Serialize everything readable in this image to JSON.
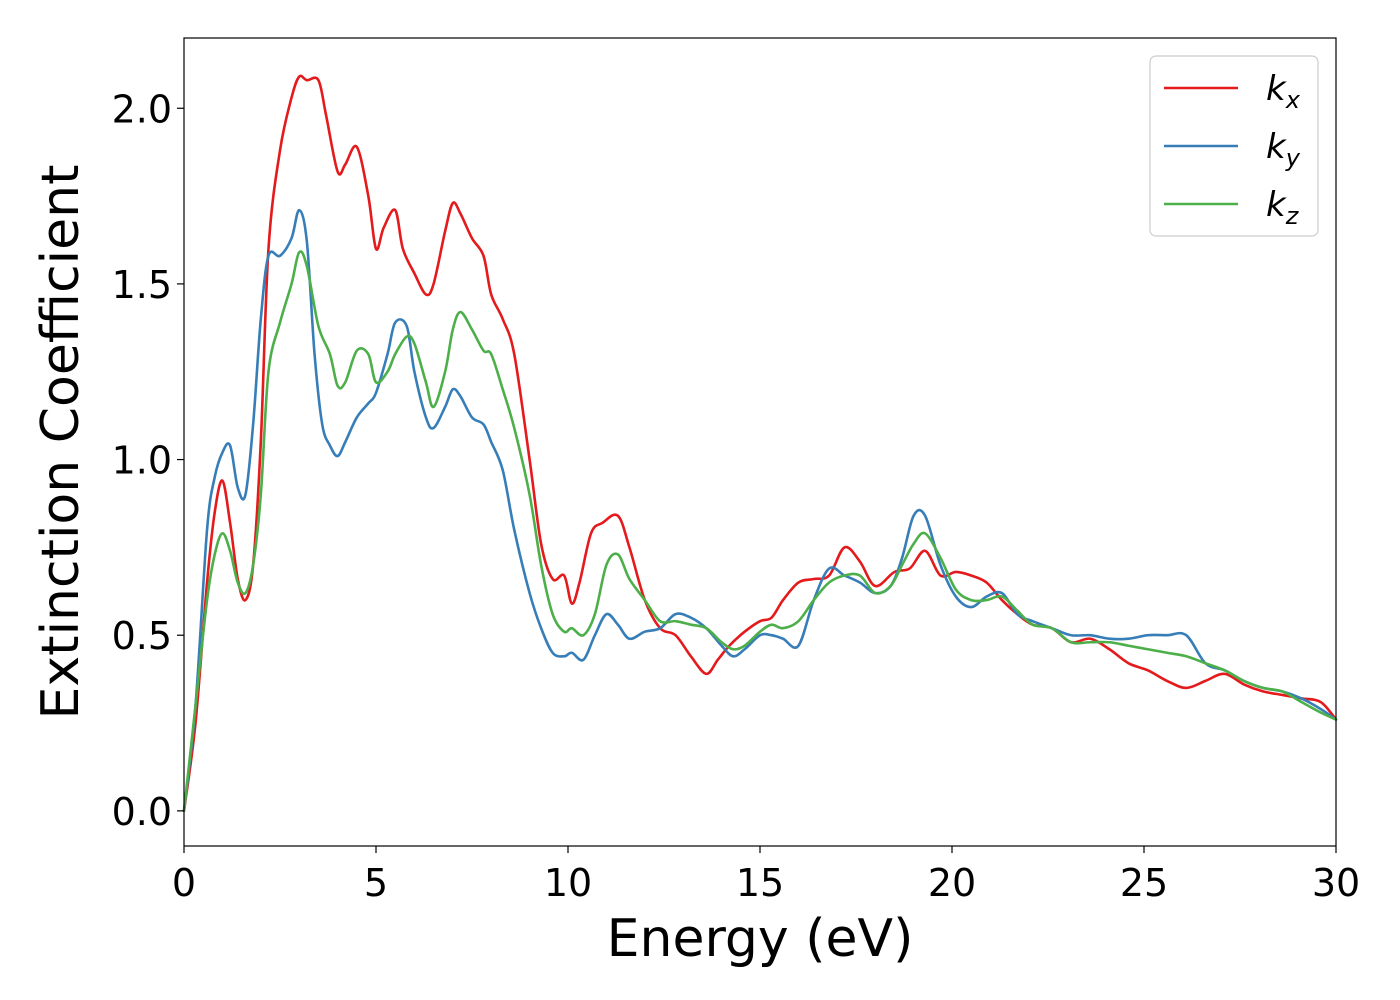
{
  "chart_data": {
    "type": "line",
    "xlabel": "Energy (eV)",
    "ylabel": "Extinction Coefficient",
    "xlim": [
      0,
      30
    ],
    "ylim": [
      -0.1,
      2.2
    ],
    "xticks": [
      0,
      5,
      10,
      15,
      20,
      25,
      30
    ],
    "xtick_labels": [
      "0",
      "5",
      "10",
      "15",
      "20",
      "25",
      "30"
    ],
    "yticks": [
      0.0,
      0.5,
      1.0,
      1.5,
      2.0
    ],
    "ytick_labels": [
      "0.0",
      "0.5",
      "1.0",
      "1.5",
      "2.0"
    ],
    "grid": false,
    "legend": "top-right",
    "series": [
      {
        "name": "k",
        "subscript": "x",
        "color": "#e41a1c",
        "x": [
          0,
          0.3,
          0.6,
          0.8,
          1.0,
          1.2,
          1.4,
          1.6,
          1.8,
          2.0,
          2.2,
          2.5,
          2.8,
          3.0,
          3.2,
          3.5,
          3.7,
          4.0,
          4.2,
          4.5,
          4.8,
          5.0,
          5.2,
          5.5,
          5.7,
          6.0,
          6.3,
          6.5,
          6.8,
          7.0,
          7.2,
          7.5,
          7.8,
          8.0,
          8.3,
          8.6,
          9.0,
          9.3,
          9.6,
          9.9,
          10.1,
          10.3,
          10.6,
          10.9,
          11.3,
          11.6,
          12.0,
          12.4,
          12.8,
          13.2,
          13.6,
          13.9,
          14.2,
          14.6,
          15.0,
          15.3,
          15.6,
          16.0,
          16.4,
          16.8,
          17.2,
          17.6,
          18.0,
          18.5,
          18.9,
          19.3,
          19.7,
          20.1,
          20.5,
          20.9,
          21.3,
          21.7,
          22.1,
          22.6,
          23.1,
          23.6,
          24.1,
          24.6,
          25.1,
          25.6,
          26.1,
          26.6,
          27.1,
          27.6,
          28.1,
          28.6,
          29.1,
          29.6,
          30.0
        ],
        "values": [
          0.0,
          0.25,
          0.65,
          0.85,
          0.94,
          0.82,
          0.66,
          0.6,
          0.7,
          1.05,
          1.6,
          1.88,
          2.03,
          2.09,
          2.08,
          2.08,
          1.98,
          1.82,
          1.84,
          1.89,
          1.75,
          1.6,
          1.66,
          1.71,
          1.6,
          1.53,
          1.47,
          1.5,
          1.65,
          1.73,
          1.7,
          1.63,
          1.58,
          1.47,
          1.4,
          1.3,
          1.0,
          0.76,
          0.66,
          0.67,
          0.59,
          0.65,
          0.79,
          0.82,
          0.84,
          0.75,
          0.6,
          0.52,
          0.5,
          0.44,
          0.39,
          0.43,
          0.47,
          0.51,
          0.54,
          0.55,
          0.6,
          0.65,
          0.66,
          0.67,
          0.75,
          0.71,
          0.64,
          0.68,
          0.69,
          0.74,
          0.67,
          0.68,
          0.67,
          0.65,
          0.6,
          0.56,
          0.53,
          0.52,
          0.48,
          0.49,
          0.46,
          0.42,
          0.4,
          0.37,
          0.35,
          0.37,
          0.39,
          0.36,
          0.34,
          0.33,
          0.32,
          0.31,
          0.26
        ]
      },
      {
        "name": "k",
        "subscript": "y",
        "color": "#377eb8",
        "x": [
          0,
          0.3,
          0.6,
          0.8,
          1.0,
          1.2,
          1.4,
          1.6,
          1.8,
          2.0,
          2.2,
          2.5,
          2.8,
          3.0,
          3.2,
          3.4,
          3.6,
          3.8,
          4.0,
          4.2,
          4.5,
          4.8,
          5.0,
          5.3,
          5.5,
          5.8,
          6.0,
          6.3,
          6.5,
          6.8,
          7.0,
          7.2,
          7.5,
          7.8,
          8.0,
          8.3,
          8.6,
          9.0,
          9.3,
          9.6,
          9.9,
          10.1,
          10.4,
          10.7,
          11.0,
          11.3,
          11.6,
          12.0,
          12.4,
          12.8,
          13.2,
          13.6,
          14.0,
          14.3,
          14.6,
          15.0,
          15.3,
          15.6,
          16.0,
          16.4,
          16.8,
          17.2,
          17.6,
          18.0,
          18.4,
          18.7,
          19.0,
          19.3,
          19.7,
          20.1,
          20.5,
          20.9,
          21.3,
          21.7,
          22.1,
          22.6,
          23.1,
          23.6,
          24.1,
          24.6,
          25.1,
          25.6,
          26.1,
          26.6,
          27.1,
          27.6,
          28.1,
          28.6,
          29.1,
          29.6,
          30.0
        ],
        "values": [
          0.0,
          0.3,
          0.8,
          0.95,
          1.02,
          1.04,
          0.92,
          0.9,
          1.1,
          1.4,
          1.58,
          1.58,
          1.63,
          1.71,
          1.62,
          1.3,
          1.1,
          1.04,
          1.01,
          1.05,
          1.12,
          1.16,
          1.19,
          1.3,
          1.39,
          1.38,
          1.25,
          1.12,
          1.09,
          1.15,
          1.2,
          1.18,
          1.12,
          1.1,
          1.05,
          0.97,
          0.8,
          0.62,
          0.52,
          0.45,
          0.44,
          0.45,
          0.43,
          0.5,
          0.56,
          0.53,
          0.49,
          0.51,
          0.52,
          0.56,
          0.55,
          0.52,
          0.47,
          0.44,
          0.46,
          0.5,
          0.5,
          0.49,
          0.47,
          0.6,
          0.69,
          0.67,
          0.65,
          0.62,
          0.64,
          0.72,
          0.84,
          0.84,
          0.7,
          0.61,
          0.58,
          0.61,
          0.62,
          0.56,
          0.54,
          0.52,
          0.5,
          0.5,
          0.49,
          0.49,
          0.5,
          0.5,
          0.5,
          0.42,
          0.4,
          0.37,
          0.35,
          0.34,
          0.32,
          0.29,
          0.26
        ]
      },
      {
        "name": "k",
        "subscript": "z",
        "color": "#4daf4a",
        "x": [
          0,
          0.3,
          0.6,
          0.8,
          1.0,
          1.2,
          1.4,
          1.6,
          1.8,
          2.0,
          2.2,
          2.5,
          2.8,
          3.0,
          3.2,
          3.5,
          3.8,
          4.0,
          4.2,
          4.5,
          4.8,
          5.0,
          5.3,
          5.5,
          5.8,
          6.0,
          6.3,
          6.5,
          6.8,
          7.0,
          7.2,
          7.5,
          7.8,
          8.0,
          8.3,
          8.6,
          9.0,
          9.3,
          9.6,
          9.9,
          10.1,
          10.4,
          10.7,
          11.0,
          11.3,
          11.6,
          12.0,
          12.4,
          12.8,
          13.2,
          13.6,
          14.0,
          14.3,
          14.6,
          15.0,
          15.3,
          15.6,
          16.0,
          16.4,
          16.8,
          17.2,
          17.6,
          18.0,
          18.4,
          18.7,
          19.0,
          19.3,
          19.7,
          20.1,
          20.5,
          20.9,
          21.3,
          21.7,
          22.1,
          22.6,
          23.1,
          23.6,
          24.1,
          24.6,
          25.1,
          25.6,
          26.1,
          26.6,
          27.1,
          27.6,
          28.1,
          28.6,
          29.1,
          29.6,
          30.0
        ],
        "values": [
          0.0,
          0.3,
          0.6,
          0.73,
          0.79,
          0.74,
          0.65,
          0.62,
          0.7,
          0.9,
          1.25,
          1.39,
          1.5,
          1.59,
          1.55,
          1.38,
          1.3,
          1.21,
          1.22,
          1.31,
          1.3,
          1.22,
          1.25,
          1.3,
          1.35,
          1.33,
          1.22,
          1.15,
          1.25,
          1.37,
          1.42,
          1.37,
          1.31,
          1.3,
          1.2,
          1.09,
          0.9,
          0.7,
          0.56,
          0.51,
          0.52,
          0.5,
          0.56,
          0.7,
          0.73,
          0.66,
          0.6,
          0.54,
          0.54,
          0.53,
          0.52,
          0.48,
          0.46,
          0.47,
          0.51,
          0.53,
          0.52,
          0.54,
          0.6,
          0.65,
          0.67,
          0.67,
          0.62,
          0.64,
          0.7,
          0.76,
          0.79,
          0.72,
          0.63,
          0.6,
          0.6,
          0.61,
          0.57,
          0.53,
          0.52,
          0.48,
          0.48,
          0.48,
          0.47,
          0.46,
          0.45,
          0.44,
          0.42,
          0.4,
          0.37,
          0.35,
          0.34,
          0.31,
          0.28,
          0.26
        ]
      }
    ]
  }
}
